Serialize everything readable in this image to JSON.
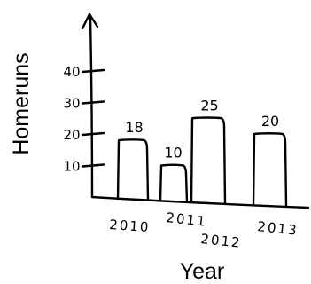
{
  "chart_data": {
    "type": "bar",
    "style": "hand-drawn",
    "categories": [
      "2010",
      "2011",
      "2012",
      "2013"
    ],
    "values": [
      18,
      10,
      25,
      20
    ],
    "data_labels": [
      "18",
      "10",
      "25",
      "20"
    ],
    "xlabel": "Year",
    "ylabel": "Homeruns",
    "yticks": [
      10,
      20,
      30,
      40
    ],
    "ytick_labels": [
      "10",
      "20",
      "30",
      "40"
    ],
    "ylim": [
      0,
      40
    ],
    "grid": false,
    "colors": {
      "ink": "#000000",
      "background": "#ffffff"
    }
  }
}
